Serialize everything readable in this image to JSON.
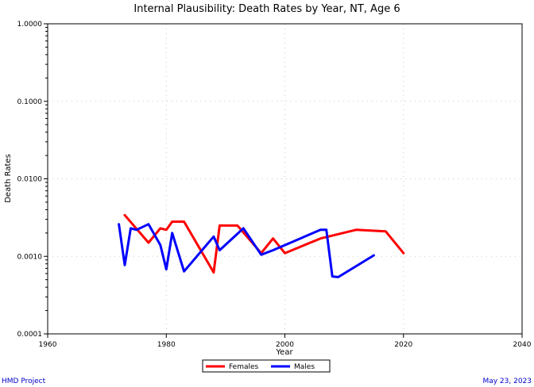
{
  "chart_data": {
    "type": "line",
    "title": "Internal Plausibility: Death Rates by Year, NT, Age 6",
    "xlabel": "Year",
    "ylabel": "Death Rates",
    "xlim": [
      1960,
      2040
    ],
    "ylim": [
      0.0001,
      1.0
    ],
    "yscale": "log",
    "x_ticks": [
      "1960",
      "1980",
      "2000",
      "2020",
      "2040"
    ],
    "y_ticks": [
      "0.0001",
      "0.0010",
      "0.0100",
      "0.1000",
      "1.0000"
    ],
    "grid": true,
    "legend": "bottom",
    "series": [
      {
        "name": "Females",
        "color": "#ff0000",
        "x": [
          1973,
          1977,
          1979,
          1980,
          1981,
          1983,
          1988,
          1989,
          1992,
          1996,
          1998,
          2000,
          2006,
          2012,
          2017,
          2020
        ],
        "y": [
          0.0034,
          0.0015,
          0.0023,
          0.0022,
          0.0028,
          0.0028,
          0.00062,
          0.0025,
          0.0025,
          0.0011,
          0.0017,
          0.0011,
          0.0017,
          0.0022,
          0.0021,
          0.0011
        ]
      },
      {
        "name": "Males",
        "color": "#0000ff",
        "x": [
          1972,
          1973,
          1974,
          1975,
          1977,
          1979,
          1980,
          1981,
          1983,
          1988,
          1989,
          1993,
          1996,
          1998,
          2006,
          2007,
          2008,
          2009,
          2015
        ],
        "y": [
          0.0026,
          0.00077,
          0.0023,
          0.0022,
          0.0026,
          0.0014,
          0.00068,
          0.002,
          0.00064,
          0.0018,
          0.0012,
          0.0023,
          0.00105,
          0.0012,
          0.0022,
          0.0022,
          0.00055,
          0.00054,
          0.00103
        ]
      }
    ]
  },
  "footer": {
    "left": "HMD Project",
    "right": "May 23, 2023"
  }
}
